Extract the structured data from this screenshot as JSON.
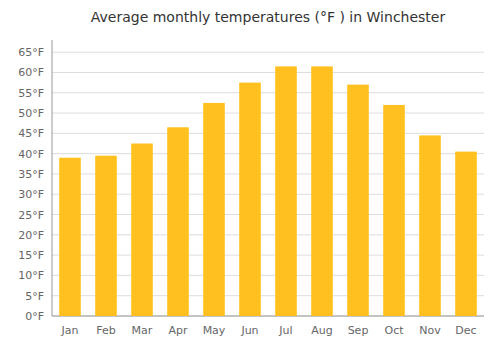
{
  "chart_data": {
    "type": "bar",
    "title": "Average monthly temperatures (°F ) in Winchester",
    "categories": [
      "Jan",
      "Feb",
      "Mar",
      "Apr",
      "May",
      "Jun",
      "Jul",
      "Aug",
      "Sep",
      "Oct",
      "Nov",
      "Dec"
    ],
    "values": [
      39,
      39.5,
      42.5,
      46.5,
      52.5,
      57.5,
      61.5,
      61.5,
      57,
      52,
      44.5,
      40.5
    ],
    "color": "#FFC020",
    "ylim": [
      0,
      68
    ],
    "yticks": [
      {
        "value": 0,
        "label": "0°F"
      },
      {
        "value": 5,
        "label": "5°F"
      },
      {
        "value": 10,
        "label": "10°F"
      },
      {
        "value": 15,
        "label": "15°F"
      },
      {
        "value": 20,
        "label": "20°F"
      },
      {
        "value": 25,
        "label": "25°F"
      },
      {
        "value": 30,
        "label": "30°F"
      },
      {
        "value": 35,
        "label": "35°F"
      },
      {
        "value": 40,
        "label": "40°F"
      },
      {
        "value": 45,
        "label": "45°F"
      },
      {
        "value": 50,
        "label": "50°F"
      },
      {
        "value": 55,
        "label": "55°F"
      },
      {
        "value": 60,
        "label": "60°F"
      },
      {
        "value": 65,
        "label": "65°F"
      }
    ],
    "grid": true
  }
}
